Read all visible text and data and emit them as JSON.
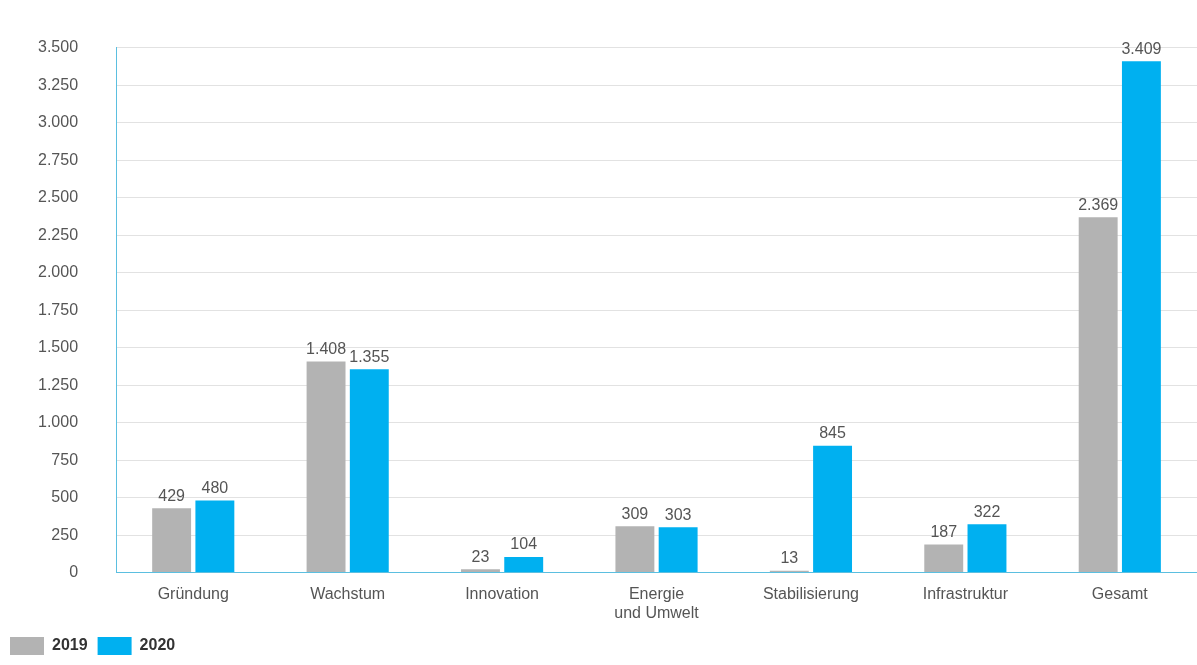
{
  "chart_data": {
    "type": "bar",
    "categories": [
      "Gründung",
      "Wachstum",
      "Innovation",
      "Energie\nund Umwelt",
      "Stabilisierung",
      "Infrastruktur",
      "Gesamt"
    ],
    "series": [
      {
        "name": "2019",
        "color": "#b3b3b3",
        "values": [
          429,
          1408,
          23,
          309,
          13,
          187,
          2369
        ],
        "value_labels": [
          "429",
          "1.408",
          "23",
          "309",
          "13",
          "187",
          "2.369"
        ]
      },
      {
        "name": "2020",
        "color": "#00b0f0",
        "values": [
          480,
          1355,
          104,
          303,
          845,
          322,
          3409
        ],
        "value_labels": [
          "480",
          "1.355",
          "104",
          "303",
          "845",
          "322",
          "3.409"
        ]
      }
    ],
    "ylim": [
      0,
      3500
    ],
    "yticks": [
      {
        "value": 0,
        "label": "0"
      },
      {
        "value": 250,
        "label": "250"
      },
      {
        "value": 500,
        "label": "500"
      },
      {
        "value": 750,
        "label": "750"
      },
      {
        "value": 1000,
        "label": "1.000"
      },
      {
        "value": 1250,
        "label": "1.250"
      },
      {
        "value": 1500,
        "label": "1.500"
      },
      {
        "value": 1750,
        "label": "1.750"
      },
      {
        "value": 2000,
        "label": "2.000"
      },
      {
        "value": 2250,
        "label": "2.250"
      },
      {
        "value": 2500,
        "label": "2.500"
      },
      {
        "value": 2750,
        "label": "2.750"
      },
      {
        "value": 3000,
        "label": "3.000"
      },
      {
        "value": 3250,
        "label": "3.250"
      },
      {
        "value": 3500,
        "label": "3.500"
      }
    ],
    "grid": "y",
    "legend": "bottom left"
  }
}
